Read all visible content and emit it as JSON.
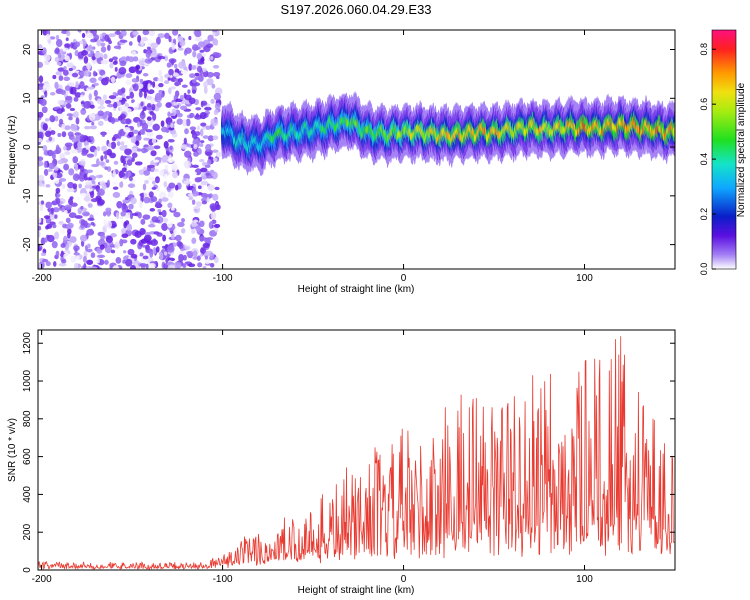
{
  "chart_data": [
    {
      "type": "heatmap",
      "title": "S197.2026.060.04.29.E33",
      "xlabel": "Height of straight line (km)",
      "ylabel": "Frequency (Hz)",
      "xlim": [
        -202,
        150
      ],
      "ylim": [
        -25,
        24
      ],
      "x_ticks": [
        -200,
        -100,
        0,
        100
      ],
      "y_ticks": [
        -20,
        -10,
        0,
        10,
        20
      ],
      "colorbar": {
        "label": "Normalized spectral amplitude",
        "range": [
          0,
          0.87
        ],
        "ticks": [
          0.0,
          0.2,
          0.4,
          0.6,
          0.8
        ]
      },
      "noise_region": {
        "x_range": [
          -202,
          -102
        ],
        "amplitude_range": [
          0.0,
          0.12
        ]
      },
      "signal_ridge": {
        "x": [
          -100,
          -90,
          -80,
          -70,
          -60,
          -50,
          -40,
          -30,
          -20,
          -10,
          0,
          10,
          20,
          30,
          40,
          50,
          60,
          70,
          80,
          90,
          100,
          110,
          120,
          130,
          140,
          150
        ],
        "freq_hz": [
          4.0,
          1.0,
          0.5,
          2.5,
          3.0,
          3.5,
          4.5,
          5.5,
          3.0,
          2.5,
          3.0,
          3.0,
          2.5,
          2.5,
          3.0,
          3.0,
          3.5,
          4.0,
          3.5,
          4.0,
          4.0,
          4.0,
          4.5,
          4.0,
          3.5,
          3.0
        ],
        "peak_amplitude": [
          0.35,
          0.45,
          0.4,
          0.5,
          0.45,
          0.45,
          0.5,
          0.55,
          0.55,
          0.6,
          0.65,
          0.7,
          0.7,
          0.75,
          0.75,
          0.75,
          0.7,
          0.75,
          0.7,
          0.75,
          0.8,
          0.75,
          0.8,
          0.8,
          0.8,
          0.75
        ]
      }
    },
    {
      "type": "line",
      "xlabel": "Height of straight line (km)",
      "ylabel": "SNR (10 * v/v)",
      "xlim": [
        -202,
        150
      ],
      "ylim": [
        0,
        1270
      ],
      "x_ticks": [
        -200,
        -100,
        0,
        100
      ],
      "y_ticks": [
        0,
        200,
        400,
        600,
        800,
        1000,
        1200
      ],
      "series": [
        {
          "name": "SNR",
          "color": "#e83a30",
          "envelope_x": [
            -202,
            -150,
            -110,
            -100,
            -90,
            -80,
            -70,
            -60,
            -50,
            -40,
            -30,
            -20,
            -10,
            0,
            10,
            20,
            30,
            40,
            50,
            60,
            70,
            80,
            90,
            100,
            110,
            120,
            130,
            140,
            150
          ],
          "envelope_peak": [
            50,
            45,
            45,
            100,
            180,
            230,
            300,
            350,
            420,
            500,
            600,
            700,
            700,
            800,
            800,
            900,
            1000,
            1000,
            1050,
            1050,
            1100,
            1100,
            1250,
            1200,
            1250,
            1270,
            1100,
            900,
            650
          ],
          "envelope_base": [
            15,
            15,
            15,
            30,
            40,
            50,
            60,
            80,
            90,
            110,
            130,
            150,
            160,
            180,
            190,
            200,
            200,
            200,
            210,
            210,
            220,
            220,
            230,
            230,
            230,
            240,
            230,
            220,
            200
          ]
        }
      ]
    }
  ]
}
